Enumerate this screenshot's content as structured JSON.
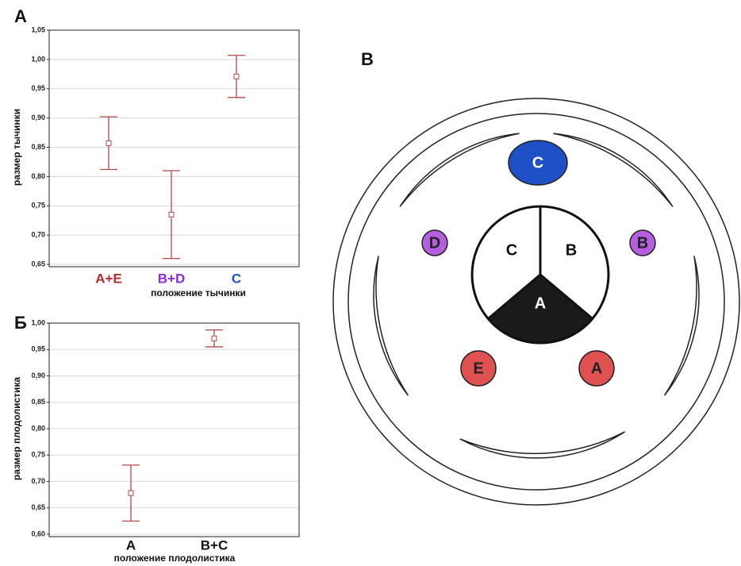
{
  "chart_data": [
    {
      "type": "errorbar",
      "panel_label": "А",
      "xlabel": "положение тычинки",
      "ylabel": "размер тычинки",
      "categories": [
        "A+E",
        "B+D",
        "C"
      ],
      "category_colors": [
        "#b22a2a",
        "#8a2be2",
        "#2050d0"
      ],
      "values": [
        0.857,
        0.735,
        0.971
      ],
      "errors": [
        0.045,
        0.075,
        0.036
      ],
      "color": "#b5474a",
      "ylim": [
        0.65,
        1.05
      ],
      "yticks": [
        {
          "value": 0.65,
          "label": "0,65"
        },
        {
          "value": 0.7,
          "label": "0,70"
        },
        {
          "value": 0.75,
          "label": "0,75"
        },
        {
          "value": 0.8,
          "label": "0,80"
        },
        {
          "value": 0.85,
          "label": "0,85"
        },
        {
          "value": 0.9,
          "label": "0,90"
        },
        {
          "value": 0.95,
          "label": "0,95"
        },
        {
          "value": 1.0,
          "label": "1,00"
        },
        {
          "value": 1.05,
          "label": "1,05"
        }
      ],
      "grid": true
    },
    {
      "type": "errorbar",
      "panel_label": "Б",
      "xlabel": "положение плодолистика",
      "ylabel": "размер плодолистика",
      "categories": [
        "A",
        "B+C"
      ],
      "category_colors": [
        "#111111",
        "#111111"
      ],
      "values": [
        0.678,
        0.971
      ],
      "errors": [
        0.053,
        0.016
      ],
      "color": "#b5474a",
      "ylim": [
        0.6,
        1.0
      ],
      "yticks": [
        {
          "value": 0.6,
          "label": "0,60"
        },
        {
          "value": 0.65,
          "label": "0,65"
        },
        {
          "value": 0.7,
          "label": "0,70"
        },
        {
          "value": 0.75,
          "label": "0,75"
        },
        {
          "value": 0.8,
          "label": "0,80"
        },
        {
          "value": 0.85,
          "label": "0,85"
        },
        {
          "value": 0.9,
          "label": "0,90"
        },
        {
          "value": 0.95,
          "label": "0,95"
        },
        {
          "value": 1.0,
          "label": "1,00"
        }
      ],
      "grid": true
    }
  ],
  "diagram": {
    "panel_label": "В",
    "center_labels": [
      "C",
      "B",
      "A"
    ],
    "organs": [
      "C",
      "D",
      "B",
      "E",
      "A"
    ]
  }
}
